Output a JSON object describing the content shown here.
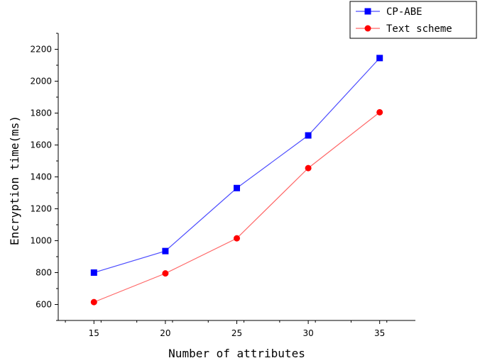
{
  "chart_data": {
    "type": "line",
    "title": "",
    "xlabel": "Number of attributes",
    "ylabel": "Encryption time(ms)",
    "x": [
      15,
      20,
      25,
      30,
      35
    ],
    "xticks": [
      "15",
      "20",
      "25",
      "30",
      "35"
    ],
    "yticks": [
      "600",
      "800",
      "1000",
      "1200",
      "1400",
      "1600",
      "1800",
      "2000",
      "2200"
    ],
    "xlim": [
      12.5,
      37.5
    ],
    "ylim": [
      500,
      2300
    ],
    "grid": false,
    "legend_position": "top-right",
    "series": [
      {
        "name": "CP-ABE",
        "values": [
          800,
          935,
          1330,
          1660,
          2145
        ],
        "color": "#0000ff",
        "line_color": "#4d4dff",
        "marker": "square"
      },
      {
        "name": "Text scheme",
        "values": [
          615,
          795,
          1015,
          1455,
          1805
        ],
        "color": "#ff0000",
        "line_color": "#ff6666",
        "marker": "circle"
      }
    ]
  }
}
